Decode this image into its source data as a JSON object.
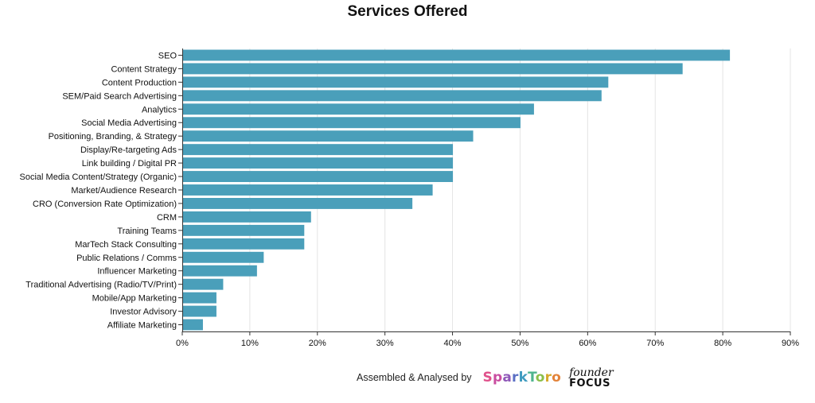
{
  "chart_data": {
    "type": "bar",
    "orientation": "horizontal",
    "title": "Services Offered",
    "xlabel": "",
    "ylabel": "",
    "categories": [
      "SEO",
      "Content Strategy",
      "Content Production",
      "SEM/Paid Search Advertising",
      "Analytics",
      "Social Media Advertising",
      "Positioning, Branding, & Strategy",
      "Display/Re-targeting Ads",
      "Link building / Digital PR",
      "Social Media Content/Strategy (Organic)",
      "Market/Audience Research",
      "CRO (Conversion Rate Optimization)",
      "CRM",
      "Training Teams",
      "MarTech Stack Consulting",
      "Public Relations / Comms",
      "Influencer Marketing",
      "Traditional Advertising (Radio/TV/Print)",
      "Mobile/App Marketing",
      "Investor Advisory",
      "Affiliate Marketing"
    ],
    "values": [
      81,
      74,
      63,
      62,
      52,
      50,
      43,
      40,
      40,
      40,
      37,
      34,
      19,
      18,
      18,
      12,
      11,
      6,
      5,
      5,
      3
    ],
    "xlim": [
      0,
      90
    ],
    "xticks": [
      0,
      10,
      20,
      30,
      40,
      50,
      60,
      70,
      80,
      90
    ],
    "tick_suffix": "%",
    "grid": true,
    "bar_color": "#4a9fba"
  },
  "footer": {
    "credit": "Assembled & Analysed by",
    "logo1_letters": [
      "S",
      "p",
      "a",
      "r",
      "k",
      "T",
      "o",
      "r",
      "o"
    ],
    "logo2_line1": "founder",
    "logo2_line2": "FOCUS"
  }
}
